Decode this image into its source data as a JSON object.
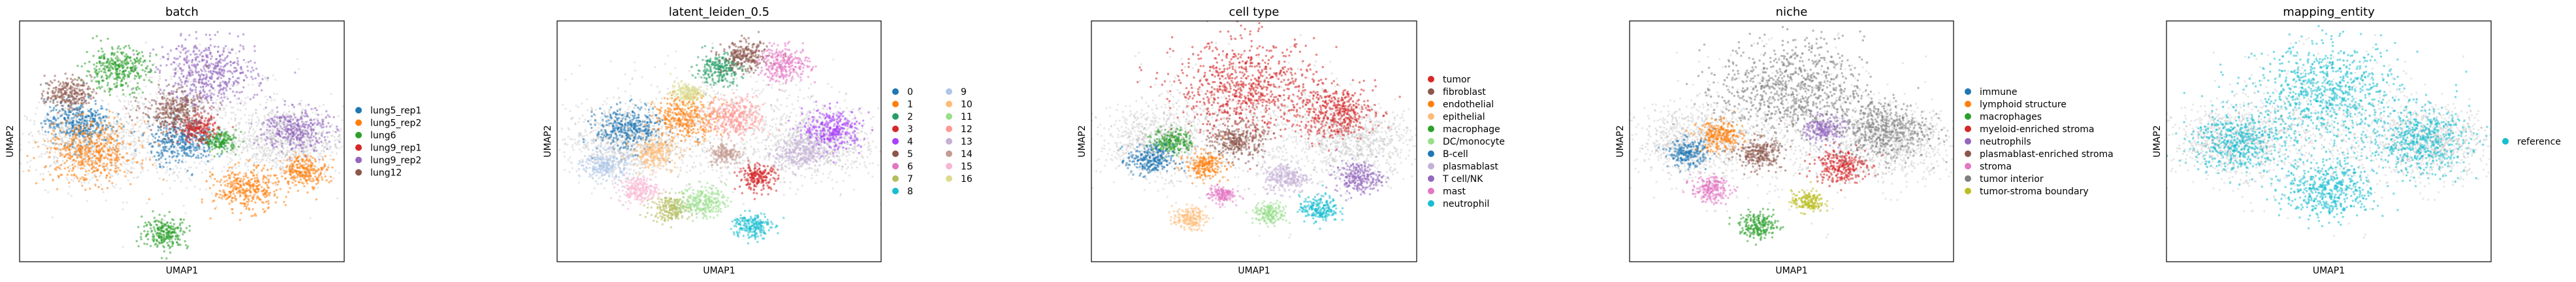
{
  "figure": {
    "panels": [
      {
        "title": "batch",
        "xlabel": "UMAP1",
        "ylabel": "UMAP2",
        "legend": [
          {
            "label": "lung5_rep1",
            "color": "#1f77b4"
          },
          {
            "label": "lung5_rep2",
            "color": "#ff7f0e"
          },
          {
            "label": "lung6",
            "color": "#2ca02c"
          },
          {
            "label": "lung9_rep1",
            "color": "#d62728"
          },
          {
            "label": "lung9_rep2",
            "color": "#9467bd"
          },
          {
            "label": "lung12",
            "color": "#8c564b"
          }
        ]
      },
      {
        "title": "latent_leiden_0.5",
        "xlabel": "UMAP1",
        "ylabel": "UMAP2",
        "legend": [
          {
            "label": "0",
            "color": "#1f77b4"
          },
          {
            "label": "1",
            "color": "#ff7f0e"
          },
          {
            "label": "2",
            "color": "#279e68"
          },
          {
            "label": "3",
            "color": "#d62728"
          },
          {
            "label": "4",
            "color": "#aa40fc"
          },
          {
            "label": "5",
            "color": "#8c564b"
          },
          {
            "label": "6",
            "color": "#e377c2"
          },
          {
            "label": "7",
            "color": "#b5bd61"
          },
          {
            "label": "8",
            "color": "#17becf"
          },
          {
            "label": "9",
            "color": "#aec7e8"
          },
          {
            "label": "10",
            "color": "#ffbb78"
          },
          {
            "label": "11",
            "color": "#98df8a"
          },
          {
            "label": "12",
            "color": "#ff9896"
          },
          {
            "label": "13",
            "color": "#c5b0d5"
          },
          {
            "label": "14",
            "color": "#c49c94"
          },
          {
            "label": "15",
            "color": "#f7b6d2"
          },
          {
            "label": "16",
            "color": "#dbdb8d"
          }
        ]
      },
      {
        "title": "cell type",
        "xlabel": "UMAP1",
        "ylabel": "UMAP2",
        "legend": [
          {
            "label": "tumor",
            "color": "#d62728"
          },
          {
            "label": "fibroblast",
            "color": "#8c564b"
          },
          {
            "label": "endothelial",
            "color": "#ff7f0e"
          },
          {
            "label": "epithelial",
            "color": "#ffbb78"
          },
          {
            "label": "macrophage",
            "color": "#2ca02c"
          },
          {
            "label": "DC/monocyte",
            "color": "#98df8a"
          },
          {
            "label": "B-cell",
            "color": "#1f77b4"
          },
          {
            "label": "plasmablast",
            "color": "#c5b0d5"
          },
          {
            "label": "T cell/NK",
            "color": "#9467bd"
          },
          {
            "label": "mast",
            "color": "#e377c2"
          },
          {
            "label": "neutrophil",
            "color": "#17becf"
          }
        ]
      },
      {
        "title": "niche",
        "xlabel": "UMAP1",
        "ylabel": "UMAP2",
        "legend": [
          {
            "label": "immune",
            "color": "#1f77b4"
          },
          {
            "label": "lymphoid structure",
            "color": "#ff7f0e"
          },
          {
            "label": "macrophages",
            "color": "#2ca02c"
          },
          {
            "label": "myeloid-enriched stroma",
            "color": "#d62728"
          },
          {
            "label": "neutrophils",
            "color": "#9467bd"
          },
          {
            "label": "plasmablast-enriched stroma",
            "color": "#8c564b"
          },
          {
            "label": "stroma",
            "color": "#e377c2"
          },
          {
            "label": "tumor interior",
            "color": "#7f7f7f"
          },
          {
            "label": "tumor-stroma boundary",
            "color": "#bcbd22"
          }
        ]
      },
      {
        "title": "mapping_entity",
        "xlabel": "UMAP1",
        "ylabel": "UMAP2",
        "legend": [
          {
            "label": "reference",
            "color": "#17becf"
          }
        ]
      }
    ]
  },
  "chart_data": [
    {
      "type": "scatter",
      "title": "batch",
      "xlabel": "UMAP1",
      "ylabel": "UMAP2",
      "grid": false,
      "legend_position": "right",
      "series": [
        {
          "name": "lung5_rep1",
          "color": "#1f77b4",
          "regions": [
            {
              "x": 0.18,
              "y": 0.58,
              "r": 0.1
            },
            {
              "x": 0.5,
              "y": 0.5,
              "r": 0.1
            }
          ]
        },
        {
          "name": "lung5_rep2",
          "color": "#ff7f0e",
          "regions": [
            {
              "x": 0.22,
              "y": 0.45,
              "r": 0.14
            },
            {
              "x": 0.7,
              "y": 0.3,
              "r": 0.1
            },
            {
              "x": 0.88,
              "y": 0.38,
              "r": 0.07
            }
          ]
        },
        {
          "name": "lung6",
          "color": "#2ca02c",
          "regions": [
            {
              "x": 0.3,
              "y": 0.8,
              "r": 0.1
            },
            {
              "x": 0.45,
              "y": 0.12,
              "r": 0.07
            },
            {
              "x": 0.62,
              "y": 0.5,
              "r": 0.05
            }
          ]
        },
        {
          "name": "lung9_rep1",
          "color": "#d62728",
          "regions": [
            {
              "x": 0.55,
              "y": 0.55,
              "r": 0.06
            }
          ]
        },
        {
          "name": "lung9_rep2",
          "color": "#9467bd",
          "regions": [
            {
              "x": 0.58,
              "y": 0.78,
              "r": 0.15
            },
            {
              "x": 0.85,
              "y": 0.55,
              "r": 0.1
            }
          ]
        },
        {
          "name": "lung12",
          "color": "#8c564b",
          "regions": [
            {
              "x": 0.48,
              "y": 0.62,
              "r": 0.1
            },
            {
              "x": 0.15,
              "y": 0.7,
              "r": 0.07
            }
          ]
        }
      ]
    },
    {
      "type": "scatter",
      "title": "latent_leiden_0.5",
      "xlabel": "UMAP1",
      "ylabel": "UMAP2",
      "grid": false,
      "legend_position": "right",
      "series": [
        {
          "name": "0",
          "color": "#1f77b4",
          "regions": [
            {
              "x": 0.22,
              "y": 0.55,
              "r": 0.1
            }
          ]
        },
        {
          "name": "1",
          "color": "#ff7f0e",
          "regions": [
            {
              "x": 0.4,
              "y": 0.6,
              "r": 0.1
            }
          ]
        },
        {
          "name": "2",
          "color": "#279e68",
          "regions": [
            {
              "x": 0.5,
              "y": 0.8,
              "r": 0.07
            }
          ]
        },
        {
          "name": "3",
          "color": "#d62728",
          "regions": [
            {
              "x": 0.62,
              "y": 0.35,
              "r": 0.06
            }
          ]
        },
        {
          "name": "4",
          "color": "#aa40fc",
          "regions": [
            {
              "x": 0.85,
              "y": 0.55,
              "r": 0.09
            }
          ]
        },
        {
          "name": "5",
          "color": "#8c564b",
          "regions": [
            {
              "x": 0.58,
              "y": 0.85,
              "r": 0.07
            }
          ]
        },
        {
          "name": "6",
          "color": "#e377c2",
          "regions": [
            {
              "x": 0.7,
              "y": 0.82,
              "r": 0.08
            }
          ]
        },
        {
          "name": "7",
          "color": "#b5bd61",
          "regions": [
            {
              "x": 0.35,
              "y": 0.22,
              "r": 0.06
            }
          ]
        },
        {
          "name": "8",
          "color": "#17becf",
          "regions": [
            {
              "x": 0.6,
              "y": 0.15,
              "r": 0.06
            }
          ]
        },
        {
          "name": "9",
          "color": "#aec7e8",
          "regions": [
            {
              "x": 0.15,
              "y": 0.4,
              "r": 0.07
            }
          ]
        },
        {
          "name": "10",
          "color": "#ffbb78",
          "regions": [
            {
              "x": 0.3,
              "y": 0.45,
              "r": 0.07
            }
          ]
        },
        {
          "name": "11",
          "color": "#98df8a",
          "regions": [
            {
              "x": 0.45,
              "y": 0.25,
              "r": 0.07
            }
          ]
        },
        {
          "name": "12",
          "color": "#ff9896",
          "regions": [
            {
              "x": 0.55,
              "y": 0.6,
              "r": 0.09
            }
          ]
        },
        {
          "name": "13",
          "color": "#c5b0d5",
          "regions": [
            {
              "x": 0.75,
              "y": 0.45,
              "r": 0.08
            }
          ]
        },
        {
          "name": "14",
          "color": "#c49c94",
          "regions": [
            {
              "x": 0.52,
              "y": 0.45,
              "r": 0.05
            }
          ]
        },
        {
          "name": "15",
          "color": "#f7b6d2",
          "regions": [
            {
              "x": 0.25,
              "y": 0.3,
              "r": 0.06
            }
          ]
        },
        {
          "name": "16",
          "color": "#dbdb8d",
          "regions": [
            {
              "x": 0.4,
              "y": 0.7,
              "r": 0.05
            }
          ]
        }
      ]
    },
    {
      "type": "scatter",
      "title": "cell type",
      "xlabel": "UMAP1",
      "ylabel": "UMAP2",
      "grid": false,
      "legend_position": "right",
      "series": [
        {
          "name": "tumor",
          "color": "#d62728",
          "regions": [
            {
              "x": 0.48,
              "y": 0.72,
              "r": 0.22
            },
            {
              "x": 0.75,
              "y": 0.62,
              "r": 0.12
            }
          ]
        },
        {
          "name": "fibroblast",
          "color": "#8c564b",
          "regions": [
            {
              "x": 0.45,
              "y": 0.5,
              "r": 0.08
            }
          ]
        },
        {
          "name": "endothelial",
          "color": "#ff7f0e",
          "regions": [
            {
              "x": 0.35,
              "y": 0.4,
              "r": 0.06
            }
          ]
        },
        {
          "name": "epithelial",
          "color": "#ffbb78",
          "regions": [
            {
              "x": 0.3,
              "y": 0.18,
              "r": 0.05
            }
          ]
        },
        {
          "name": "macrophage",
          "color": "#2ca02c",
          "regions": [
            {
              "x": 0.25,
              "y": 0.5,
              "r": 0.06
            }
          ]
        },
        {
          "name": "DC/monocyte",
          "color": "#98df8a",
          "regions": [
            {
              "x": 0.55,
              "y": 0.2,
              "r": 0.05
            }
          ]
        },
        {
          "name": "B-cell",
          "color": "#1f77b4",
          "regions": [
            {
              "x": 0.18,
              "y": 0.42,
              "r": 0.07
            }
          ]
        },
        {
          "name": "plasmablast",
          "color": "#c5b0d5",
          "regions": [
            {
              "x": 0.6,
              "y": 0.35,
              "r": 0.07
            }
          ]
        },
        {
          "name": "T cell/NK",
          "color": "#9467bd",
          "regions": [
            {
              "x": 0.82,
              "y": 0.35,
              "r": 0.07
            }
          ]
        },
        {
          "name": "mast",
          "color": "#e377c2",
          "regions": [
            {
              "x": 0.4,
              "y": 0.28,
              "r": 0.04
            }
          ]
        },
        {
          "name": "neutrophil",
          "color": "#17becf",
          "regions": [
            {
              "x": 0.7,
              "y": 0.22,
              "r": 0.06
            }
          ]
        }
      ]
    },
    {
      "type": "scatter",
      "title": "niche",
      "xlabel": "UMAP1",
      "ylabel": "UMAP2",
      "grid": false,
      "legend_position": "right",
      "series": [
        {
          "name": "immune",
          "color": "#1f77b4",
          "regions": [
            {
              "x": 0.18,
              "y": 0.45,
              "r": 0.06
            }
          ]
        },
        {
          "name": "lymphoid structure",
          "color": "#ff7f0e",
          "regions": [
            {
              "x": 0.28,
              "y": 0.52,
              "r": 0.07
            }
          ]
        },
        {
          "name": "macrophages",
          "color": "#2ca02c",
          "regions": [
            {
              "x": 0.4,
              "y": 0.15,
              "r": 0.06
            }
          ]
        },
        {
          "name": "myeloid-enriched stroma",
          "color": "#d62728",
          "regions": [
            {
              "x": 0.65,
              "y": 0.4,
              "r": 0.08
            }
          ]
        },
        {
          "name": "neutrophils",
          "color": "#9467bd",
          "regions": [
            {
              "x": 0.6,
              "y": 0.55,
              "r": 0.06
            }
          ]
        },
        {
          "name": "plasmablast-enriched stroma",
          "color": "#8c564b",
          "regions": [
            {
              "x": 0.4,
              "y": 0.45,
              "r": 0.07
            }
          ]
        },
        {
          "name": "stroma",
          "color": "#e377c2",
          "regions": [
            {
              "x": 0.25,
              "y": 0.3,
              "r": 0.06
            }
          ]
        },
        {
          "name": "tumor interior",
          "color": "#7f7f7f",
          "regions": [
            {
              "x": 0.5,
              "y": 0.72,
              "r": 0.22
            },
            {
              "x": 0.78,
              "y": 0.55,
              "r": 0.14
            }
          ]
        },
        {
          "name": "tumor-stroma boundary",
          "color": "#bcbd22",
          "regions": [
            {
              "x": 0.55,
              "y": 0.25,
              "r": 0.05
            }
          ]
        }
      ]
    },
    {
      "type": "scatter",
      "title": "mapping_entity",
      "xlabel": "UMAP1",
      "ylabel": "UMAP2",
      "grid": false,
      "legend_position": "right",
      "series": [
        {
          "name": "reference",
          "color": "#17becf",
          "regions": [
            {
              "x": 0.5,
              "y": 0.7,
              "r": 0.22
            },
            {
              "x": 0.22,
              "y": 0.5,
              "r": 0.14
            },
            {
              "x": 0.78,
              "y": 0.5,
              "r": 0.15
            },
            {
              "x": 0.5,
              "y": 0.3,
              "r": 0.14
            }
          ]
        }
      ]
    }
  ]
}
